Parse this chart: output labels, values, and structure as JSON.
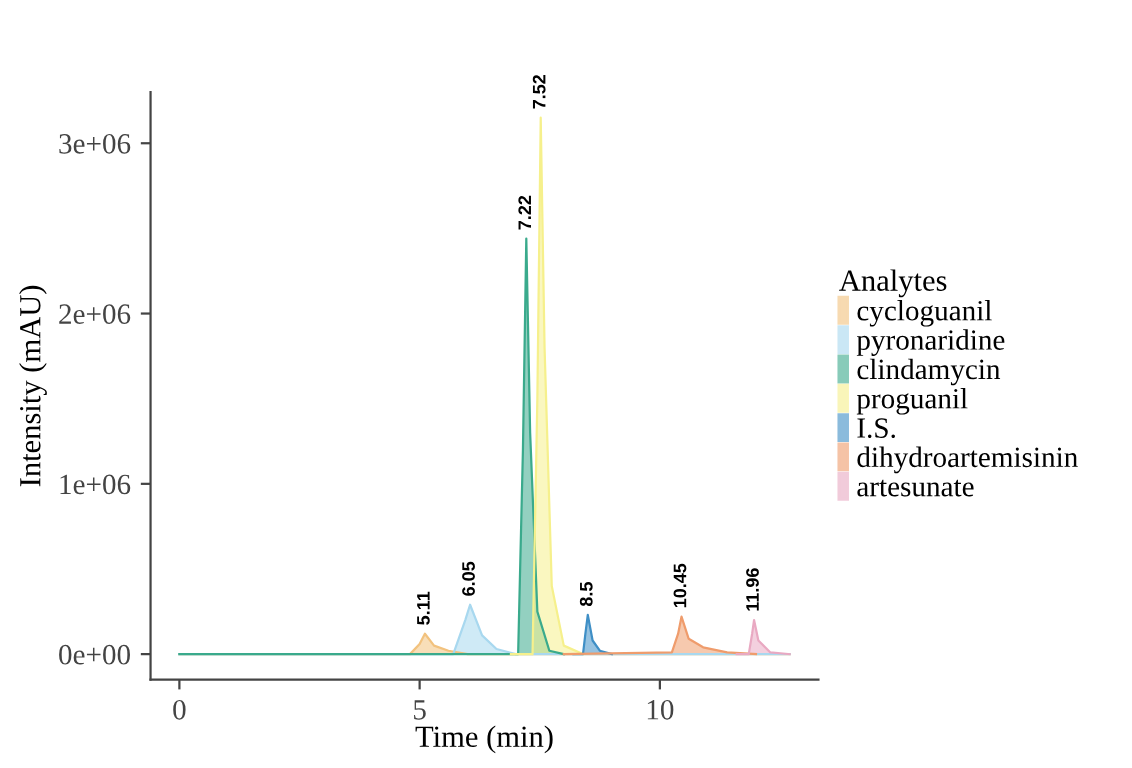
{
  "chart_data": {
    "type": "area",
    "xlabel": "Time (min)",
    "ylabel": "Intensity (mAU)",
    "legend_title": "Analytes",
    "legend": "right",
    "grid": false,
    "xlim": [
      -0.6,
      13.3
    ],
    "xticks": [
      0,
      5,
      10
    ],
    "ylim": [
      -150000,
      3300000
    ],
    "yticks": [
      {
        "value": 0,
        "label": "0e+00"
      },
      {
        "value": 1000000,
        "label": "1e+06"
      },
      {
        "value": 2000000,
        "label": "2e+06"
      },
      {
        "value": 3000000,
        "label": "3e+06"
      }
    ],
    "series": [
      {
        "name": "cycloguanil",
        "color": "#f2c27e",
        "x": [
          0,
          4.8,
          5.0,
          5.11,
          5.3,
          5.6,
          6.0,
          12.7
        ],
        "values": [
          0,
          0,
          60000,
          120000,
          50000,
          20000,
          0,
          0
        ]
      },
      {
        "name": "pyronaridine",
        "color": "#a8d8ef",
        "x": [
          0,
          5.7,
          5.95,
          6.05,
          6.3,
          6.6,
          7.0,
          12.7
        ],
        "values": [
          0,
          0,
          200000,
          290000,
          110000,
          30000,
          0,
          0
        ]
      },
      {
        "name": "clindamycin",
        "color": "#3aaa8c",
        "x": [
          0,
          7.05,
          7.15,
          7.22,
          7.3,
          7.45,
          7.7,
          8.0
        ],
        "values": [
          0,
          0,
          1200000,
          2440000,
          1300000,
          250000,
          20000,
          0
        ]
      },
      {
        "name": "proguanil",
        "color": "#f6f08c",
        "x": [
          6.9,
          7.35,
          7.45,
          7.52,
          7.6,
          7.75,
          8.0,
          8.4
        ],
        "values": [
          0,
          0,
          1500000,
          3150000,
          1800000,
          400000,
          50000,
          0
        ]
      },
      {
        "name": "I.S.",
        "color": "#3f8fc6",
        "x": [
          8.2,
          8.4,
          8.45,
          8.5,
          8.6,
          8.75,
          9.0
        ],
        "values": [
          0,
          0,
          120000,
          230000,
          80000,
          20000,
          0
        ]
      },
      {
        "name": "dihydroartemisinin",
        "color": "#ef9c6c",
        "x": [
          8.0,
          10.25,
          10.38,
          10.45,
          10.6,
          10.9,
          11.4,
          12.0
        ],
        "values": [
          0,
          10000,
          120000,
          220000,
          90000,
          40000,
          10000,
          0
        ]
      },
      {
        "name": "artesunate",
        "color": "#e9a9c2",
        "x": [
          11.6,
          11.85,
          11.92,
          11.96,
          12.05,
          12.3,
          12.7
        ],
        "values": [
          0,
          0,
          120000,
          200000,
          80000,
          10000,
          0
        ]
      }
    ],
    "annotations": [
      {
        "text": "5.11",
        "x": 5.11,
        "y": 120000
      },
      {
        "text": "6.05",
        "x": 6.05,
        "y": 290000
      },
      {
        "text": "7.22",
        "x": 7.22,
        "y": 2440000
      },
      {
        "text": "7.52",
        "x": 7.52,
        "y": 3150000
      },
      {
        "text": "8.5",
        "x": 8.5,
        "y": 230000
      },
      {
        "text": "10.45",
        "x": 10.45,
        "y": 220000
      },
      {
        "text": "11.96",
        "x": 11.96,
        "y": 200000
      }
    ]
  }
}
